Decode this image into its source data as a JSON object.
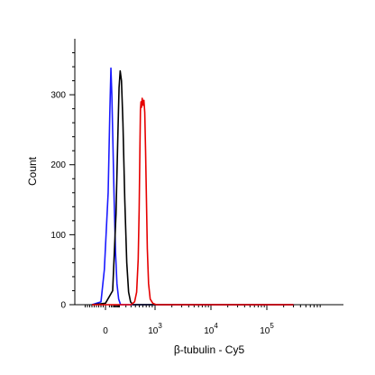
{
  "chart_data": {
    "type": "line",
    "title": "",
    "xlabel": "β-tubulin - Cy5",
    "ylabel": "Count",
    "x_scale": "biexponential",
    "xlim": [
      -100,
      300000
    ],
    "ylim": [
      0,
      380
    ],
    "grid": false,
    "legend": "none",
    "y_ticks": [
      {
        "value": 0,
        "label": "0"
      },
      {
        "value": 100,
        "label": "100"
      },
      {
        "value": 200,
        "label": "200"
      },
      {
        "value": 300,
        "label": "300"
      }
    ],
    "x_ticks": [
      {
        "value": 0,
        "base": "0",
        "exp": ""
      },
      {
        "value": 1000,
        "base": "10",
        "exp": "3"
      },
      {
        "value": 10000,
        "base": "10",
        "exp": "4"
      },
      {
        "value": 100000,
        "base": "10",
        "exp": "5"
      }
    ],
    "series": [
      {
        "color": "#1a1aff",
        "points": [
          [
            -60,
            0
          ],
          [
            -20,
            4
          ],
          [
            -5,
            50
          ],
          [
            5,
            160
          ],
          [
            12,
            275
          ],
          [
            18,
            338
          ],
          [
            24,
            300
          ],
          [
            32,
            230
          ],
          [
            42,
            150
          ],
          [
            55,
            75
          ],
          [
            70,
            30
          ],
          [
            90,
            8
          ],
          [
            115,
            0
          ],
          [
            300000,
            0
          ]
        ]
      },
      {
        "color": "#000000",
        "points": [
          [
            -60,
            0
          ],
          [
            0,
            2
          ],
          [
            30,
            20
          ],
          [
            60,
            130
          ],
          [
            80,
            240
          ],
          [
            95,
            310
          ],
          [
            110,
            334
          ],
          [
            128,
            320
          ],
          [
            150,
            260
          ],
          [
            180,
            150
          ],
          [
            215,
            60
          ],
          [
            250,
            18
          ],
          [
            290,
            4
          ],
          [
            340,
            0
          ],
          [
            300000,
            0
          ]
        ]
      },
      {
        "color": "#e60000",
        "points": [
          [
            -60,
            0
          ],
          [
            300,
            0
          ],
          [
            380,
            4
          ],
          [
            430,
            18
          ],
          [
            470,
            65
          ],
          [
            495,
            135
          ],
          [
            515,
            220
          ],
          [
            530,
            278
          ],
          [
            545,
            290
          ],
          [
            560,
            282
          ],
          [
            580,
            295
          ],
          [
            605,
            285
          ],
          [
            630,
            292
          ],
          [
            655,
            275
          ],
          [
            680,
            220
          ],
          [
            705,
            155
          ],
          [
            735,
            80
          ],
          [
            775,
            30
          ],
          [
            830,
            8
          ],
          [
            920,
            2
          ],
          [
            1050,
            0
          ],
          [
            300000,
            0
          ]
        ]
      }
    ]
  }
}
